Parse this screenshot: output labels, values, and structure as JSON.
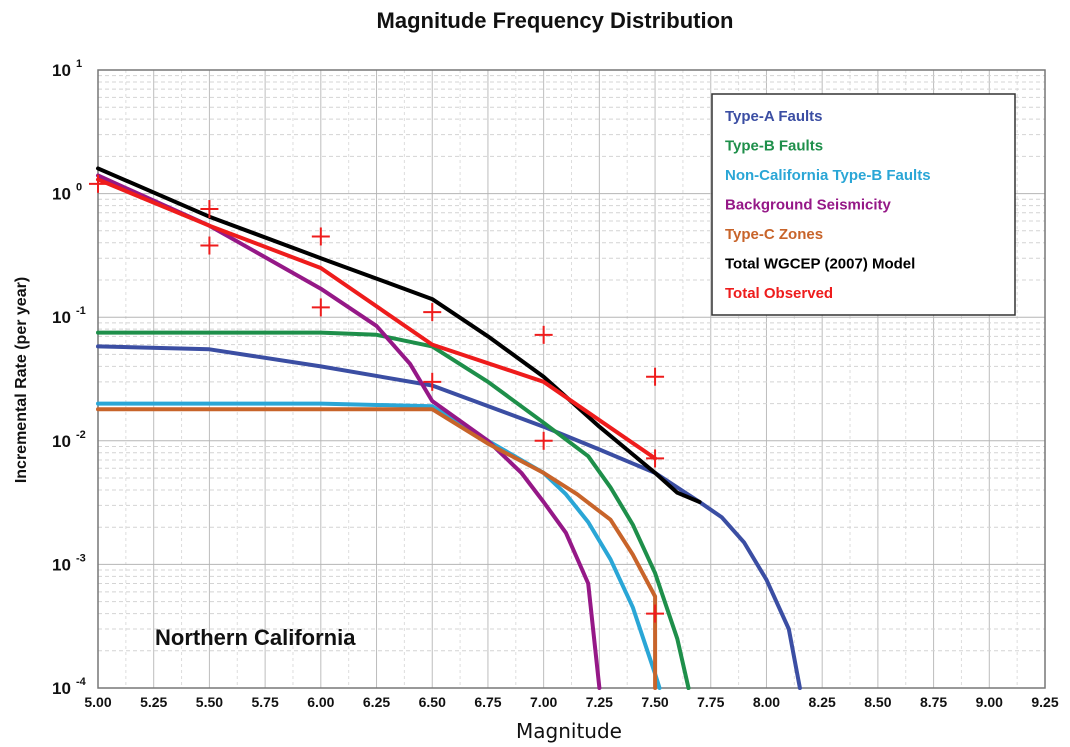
{
  "chart_data": {
    "type": "line",
    "title": "Magnitude Frequency Distribution",
    "xlabel": "Magnitude",
    "ylabel": "Incremental Rate (per year)",
    "xlim": [
      5.0,
      9.25
    ],
    "ylim": [
      0.0001,
      10
    ],
    "yscale": "log",
    "grid": true,
    "legend_placement": "top-right",
    "annotation": "Northern California",
    "x_ticks": [
      "5.00",
      "5.25",
      "5.50",
      "5.75",
      "6.00",
      "6.25",
      "6.50",
      "6.75",
      "7.00",
      "7.25",
      "7.50",
      "7.75",
      "8.00",
      "8.25",
      "8.50",
      "8.75",
      "9.00",
      "9.25"
    ],
    "y_ticks": [
      {
        "base": "10",
        "exp": "-4",
        "value": 0.0001
      },
      {
        "base": "10",
        "exp": "-3",
        "value": 0.001
      },
      {
        "base": "10",
        "exp": "-2",
        "value": 0.01
      },
      {
        "base": "10",
        "exp": "-1",
        "value": 0.1
      },
      {
        "base": "10",
        "exp": "0",
        "value": 1
      },
      {
        "base": "10",
        "exp": "1",
        "value": 10
      }
    ],
    "series": [
      {
        "name": "Type-A Faults",
        "color": "#3b4ea3",
        "x": [
          5.0,
          5.5,
          6.0,
          6.5,
          7.0,
          7.25,
          7.5,
          7.7,
          7.8,
          7.9,
          8.0,
          8.1,
          8.15
        ],
        "y": [
          0.058,
          0.055,
          0.04,
          0.028,
          0.013,
          0.0085,
          0.0055,
          0.0032,
          0.0024,
          0.0015,
          0.00075,
          0.0003,
          0.0001
        ]
      },
      {
        "name": "Type-B Faults",
        "color": "#1e8f4a",
        "x": [
          5.0,
          6.0,
          6.25,
          6.5,
          6.75,
          7.0,
          7.2,
          7.3,
          7.4,
          7.5,
          7.6,
          7.65
        ],
        "y": [
          0.075,
          0.075,
          0.072,
          0.058,
          0.03,
          0.014,
          0.0075,
          0.0042,
          0.0021,
          0.00085,
          0.00025,
          0.0001
        ]
      },
      {
        "name": "Non-California Type-B Faults",
        "color": "#2aa6d6",
        "x": [
          5.0,
          6.0,
          6.5,
          6.75,
          7.0,
          7.1,
          7.2,
          7.3,
          7.4,
          7.5,
          7.52
        ],
        "y": [
          0.02,
          0.02,
          0.019,
          0.01,
          0.0055,
          0.0037,
          0.0022,
          0.0011,
          0.00045,
          0.00013,
          0.0001
        ]
      },
      {
        "name": "Background Seismicity",
        "color": "#951887",
        "x": [
          5.0,
          5.5,
          6.0,
          6.25,
          6.4,
          6.5,
          6.75,
          6.9,
          7.0,
          7.1,
          7.2,
          7.25
        ],
        "y": [
          1.4,
          0.55,
          0.17,
          0.085,
          0.042,
          0.021,
          0.01,
          0.0055,
          0.0032,
          0.0018,
          0.0007,
          0.0001
        ]
      },
      {
        "name": "Type-C Zones",
        "color": "#c8642a",
        "x": [
          5.0,
          6.0,
          6.5,
          6.75,
          7.0,
          7.15,
          7.3,
          7.4,
          7.5,
          7.5
        ],
        "y": [
          0.018,
          0.018,
          0.018,
          0.0095,
          0.0055,
          0.0037,
          0.0023,
          0.0012,
          0.00055,
          0.0001
        ]
      },
      {
        "name": "Total WGCEP (2007) Model",
        "color": "#000000",
        "x": [
          5.0,
          5.5,
          6.0,
          6.5,
          6.75,
          7.0,
          7.25,
          7.5,
          7.6,
          7.7
        ],
        "y": [
          1.6,
          0.65,
          0.3,
          0.14,
          0.07,
          0.033,
          0.013,
          0.0055,
          0.0038,
          0.0032
        ]
      },
      {
        "name": "Total Observed",
        "color": "#ee1c1c",
        "x": [
          5.0,
          5.5,
          6.0,
          6.5,
          7.0,
          7.5
        ],
        "y": [
          1.3,
          0.55,
          0.25,
          0.06,
          0.03,
          0.0072
        ]
      }
    ],
    "observed_markers": {
      "color": "#ee1c1c",
      "points": [
        {
          "x": 5.0,
          "y": 1.2
        },
        {
          "x": 5.5,
          "y": 0.75
        },
        {
          "x": 5.5,
          "y": 0.38
        },
        {
          "x": 6.0,
          "y": 0.45
        },
        {
          "x": 6.0,
          "y": 0.12
        },
        {
          "x": 6.5,
          "y": 0.11
        },
        {
          "x": 6.5,
          "y": 0.03
        },
        {
          "x": 7.0,
          "y": 0.072
        },
        {
          "x": 7.0,
          "y": 0.01
        },
        {
          "x": 7.5,
          "y": 0.033
        },
        {
          "x": 7.5,
          "y": 0.0072
        },
        {
          "x": 7.5,
          "y": 0.0004
        }
      ]
    }
  }
}
